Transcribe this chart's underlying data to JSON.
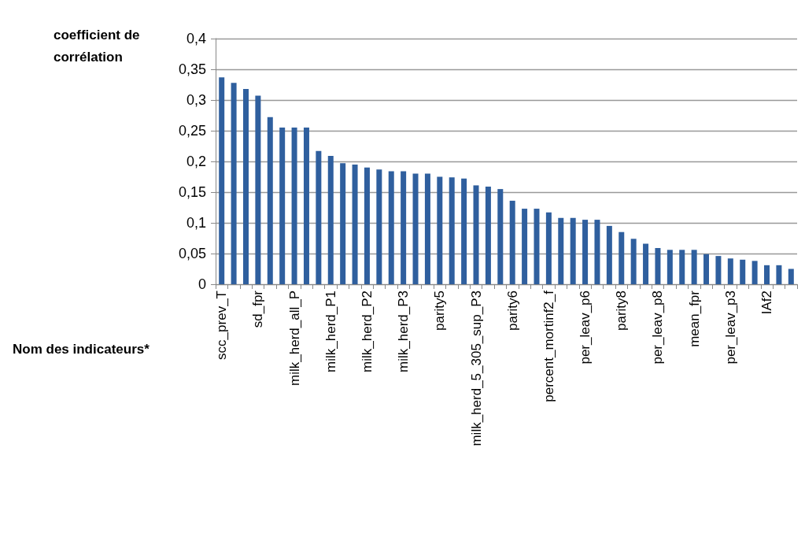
{
  "chart_data": {
    "type": "bar",
    "ylabel": "coefficient de corrélation",
    "xlabel": "Nom des indicateurs*",
    "categories": [
      "scc_prev_T",
      null,
      null,
      "sd_fpr",
      null,
      null,
      "milk_herd_all_P",
      null,
      null,
      "milk_herd_P1",
      null,
      null,
      "milk_herd_P2",
      null,
      null,
      "milk_herd_P3",
      null,
      null,
      "parity5",
      null,
      null,
      "milk_herd_5_305_sup_P3",
      null,
      null,
      "parity6",
      null,
      null,
      "percent_mortinf2_f",
      null,
      null,
      "per_leav_p6",
      null,
      null,
      "parity8",
      null,
      null,
      "per_leav_p8",
      null,
      null,
      "mean_fpr",
      null,
      null,
      "per_leav_p3",
      null,
      null,
      "IAf2",
      null,
      null
    ],
    "values": [
      0.337,
      0.328,
      0.318,
      0.307,
      0.272,
      0.255,
      0.255,
      0.255,
      0.217,
      0.209,
      0.197,
      0.195,
      0.19,
      0.187,
      0.184,
      0.184,
      0.18,
      0.18,
      0.175,
      0.174,
      0.172,
      0.161,
      0.159,
      0.155,
      0.136,
      0.123,
      0.123,
      0.117,
      0.108,
      0.108,
      0.105,
      0.105,
      0.095,
      0.085,
      0.074,
      0.066,
      0.059,
      0.056,
      0.056,
      0.056,
      0.049,
      0.046,
      0.042,
      0.04,
      0.038,
      0.031,
      0.031,
      0.025
    ],
    "color": "#2f5f9e",
    "ylim": [
      0,
      0.4
    ],
    "yticks": [
      0,
      {
        "value": 0.05,
        "label": "0,05"
      },
      {
        "value": 0.1,
        "label": "0,1"
      },
      {
        "value": 0.15,
        "label": "0,15"
      },
      {
        "value": 0.2,
        "label": "0,2"
      },
      {
        "value": 0.25,
        "label": "0,25"
      },
      {
        "value": 0.3,
        "label": "0,3"
      },
      {
        "value": 0.35,
        "label": "0,35"
      },
      {
        "value": 0.4,
        "label": "0,4"
      }
    ],
    "grid": "y"
  }
}
